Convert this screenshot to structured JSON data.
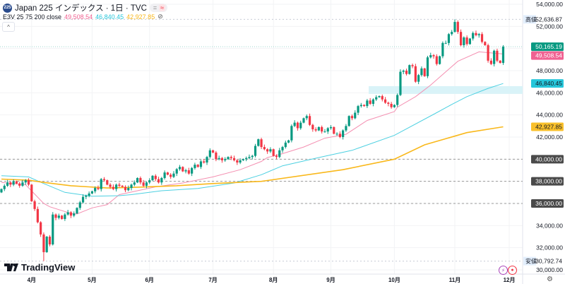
{
  "header": {
    "symbol_badge": "225",
    "title": "Japan 225 インデックス · 1日 · TVC",
    "pill_left": "=",
    "pill_right": "≈"
  },
  "indicator": {
    "label": "E3V 25 75 200 close",
    "values": [
      "49,508.54",
      "46,840.45",
      "42,927.85"
    ],
    "eye_off": "⊘"
  },
  "collapse_button": "^",
  "brand": "TradingView",
  "colors": {
    "up": "#089981",
    "down": "#f23645",
    "ma25": "#f48fb1",
    "ma75": "#4dd0e1",
    "ma200": "#f9b81b",
    "zone": "#d9f3f8"
  },
  "chart_data": {
    "type": "candlestick",
    "ylim": [
      30000,
      54000
    ],
    "y_ticks": [
      "54,000.00",
      "52,000.00",
      "48,000.00",
      "46,000.00",
      "44,000.00",
      "42,000.00",
      "34,000.00",
      "32,000.00",
      "30,000.00"
    ],
    "x_ticks": [
      {
        "i": 10,
        "label": "4月"
      },
      {
        "i": 30,
        "label": "5月"
      },
      {
        "i": 49,
        "label": "6月"
      },
      {
        "i": 70,
        "label": "7月"
      },
      {
        "i": 90,
        "label": "8月"
      },
      {
        "i": 109,
        "label": "9月"
      },
      {
        "i": 130,
        "label": "10月"
      },
      {
        "i": 150,
        "label": "11月"
      },
      {
        "i": 168,
        "label": "12月"
      }
    ],
    "closes": [
      37300,
      37600,
      37900,
      37700,
      38000,
      37800,
      37600,
      37900,
      38100,
      37700,
      36200,
      35500,
      34300,
      33200,
      31600,
      33000,
      32300,
      35000,
      34700,
      34900,
      34600,
      35000,
      35200,
      34900,
      35100,
      35600,
      36100,
      36600,
      36700,
      36900,
      37100,
      37400,
      37300,
      38200,
      38100,
      37700,
      37500,
      37300,
      37700,
      37600,
      37500,
      37200,
      37400,
      37700,
      37900,
      38300,
      37900,
      37600,
      37900,
      38100,
      38500,
      38200,
      37900,
      38300,
      38800,
      38600,
      38400,
      38700,
      39100,
      39300,
      38900,
      39000,
      38700,
      39200,
      39500,
      39300,
      39800,
      39700,
      40200,
      40800,
      40600,
      40000,
      40100,
      39900,
      40000,
      40200,
      40100,
      39900,
      39700,
      39900,
      40000,
      40100,
      40200,
      40300,
      41200,
      41800,
      41100,
      40900,
      40700,
      40900,
      40300,
      40200,
      40800,
      41100,
      41500,
      41700,
      43000,
      43300,
      42800,
      43300,
      43700,
      43900,
      43100,
      42700,
      42600,
      42900,
      42500,
      42500,
      42800,
      42900,
      42300,
      42300,
      42000,
      42600,
      43000,
      43900,
      43700,
      44200,
      44800,
      44900,
      44800,
      45300,
      45000,
      45400,
      45600,
      45700,
      45400,
      45100,
      45000,
      44700,
      44900,
      45800,
      47900,
      48000,
      47700,
      48500,
      48400,
      47000,
      47600,
      48200,
      47500,
      49200,
      49400,
      49300,
      48600,
      49300,
      50500,
      50500,
      51300,
      51500,
      52400,
      51500,
      50300,
      51000,
      50400,
      50900,
      51400,
      51200,
      51300,
      50600,
      50300,
      48900,
      48600,
      49800,
      48900,
      48700,
      50165.19
    ],
    "period_high": {
      "i": 150,
      "value": 52636.87,
      "label": "高値",
      "text": "52,636.87"
    },
    "period_low": {
      "i": 14,
      "value": 30792.74,
      "label": "安値",
      "text": "30,792.74"
    },
    "last_price": {
      "value": 50165.19,
      "text": "50,165.19"
    },
    "moving_averages": [
      {
        "period": 25,
        "last": "49,508.54",
        "points": [
          [
            0,
            37900
          ],
          [
            8,
            37700
          ],
          [
            14,
            36000
          ],
          [
            16,
            35700
          ],
          [
            23,
            35100
          ],
          [
            25,
            35050
          ],
          [
            30,
            35600
          ],
          [
            35,
            35900
          ],
          [
            39,
            36800
          ],
          [
            51,
            37500
          ],
          [
            60,
            37850
          ],
          [
            70,
            38400
          ],
          [
            79,
            39050
          ],
          [
            86,
            39800
          ],
          [
            88,
            40150
          ],
          [
            93,
            40500
          ],
          [
            100,
            41100
          ],
          [
            107,
            41900
          ],
          [
            114,
            42250
          ],
          [
            121,
            43500
          ],
          [
            130,
            44300
          ],
          [
            131,
            44700
          ],
          [
            137,
            45650
          ],
          [
            142,
            46700
          ],
          [
            147,
            47900
          ],
          [
            151,
            48850
          ],
          [
            158,
            49700
          ],
          [
            166,
            49508.54
          ]
        ]
      },
      {
        "period": 75,
        "last": "46,840.45",
        "points": [
          [
            0,
            38500
          ],
          [
            9,
            38400
          ],
          [
            14,
            37800
          ],
          [
            21,
            37000
          ],
          [
            30,
            36650
          ],
          [
            39,
            36700
          ],
          [
            43,
            36800
          ],
          [
            53,
            37150
          ],
          [
            65,
            37350
          ],
          [
            77,
            37850
          ],
          [
            86,
            38600
          ],
          [
            93,
            39400
          ],
          [
            105,
            40150
          ],
          [
            116,
            40800
          ],
          [
            130,
            42150
          ],
          [
            144,
            44200
          ],
          [
            149,
            44950
          ],
          [
            154,
            45650
          ],
          [
            161,
            46400
          ],
          [
            166,
            46840.45
          ]
        ]
      },
      {
        "period": 200,
        "last": "42,927.85",
        "points": [
          [
            0,
            38200
          ],
          [
            9,
            38100
          ],
          [
            14,
            37900
          ],
          [
            23,
            37600
          ],
          [
            35,
            37400
          ],
          [
            43,
            37450
          ],
          [
            58,
            37600
          ],
          [
            70,
            37800
          ],
          [
            86,
            38000
          ],
          [
            113,
            39050
          ],
          [
            130,
            40000
          ],
          [
            140,
            41300
          ],
          [
            154,
            42400
          ],
          [
            166,
            42927.85
          ]
        ]
      }
    ],
    "horizontal_lines": [
      {
        "value": 40000,
        "text": "40,000.00"
      },
      {
        "value": 38000,
        "text": "38,000.00"
      },
      {
        "value": 36000,
        "text": "36,000.00"
      }
    ],
    "zone": {
      "from_i": 121.5,
      "low": 45900,
      "high": 46600
    }
  }
}
